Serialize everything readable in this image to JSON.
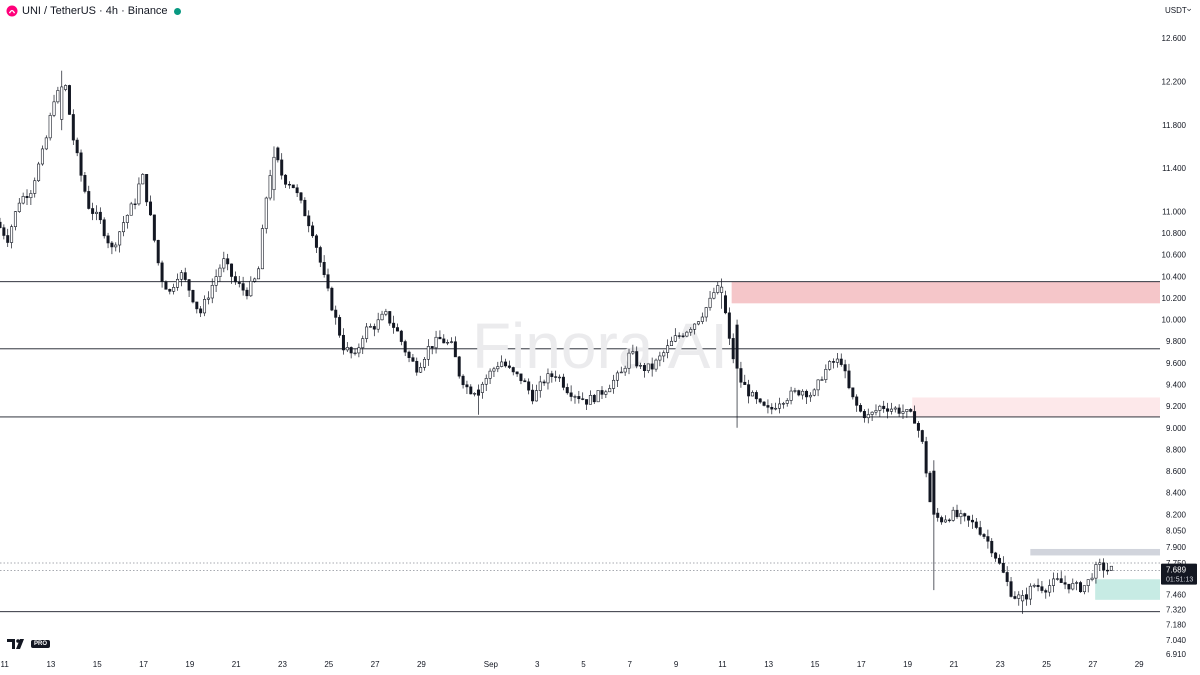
{
  "header": {
    "symbol": "UNI",
    "quote": "TetherUS",
    "interval": "4h",
    "exchange": "Binance",
    "separator": " / ",
    "separator2": " · ",
    "status_color": "#089981"
  },
  "currency_button": {
    "label": "USDT",
    "icon": "chevron-down-icon"
  },
  "watermark": "Finora AI",
  "branding": {
    "logo": "tradingview-logo",
    "badge": "PRO"
  },
  "price_marker": {
    "price_label": "7.689",
    "countdown": "01:51:13",
    "value": 7.689
  },
  "chart_data": {
    "type": "candlestick",
    "title": "",
    "y_axis": {
      "min": 6.9,
      "max": 12.75,
      "position": "right",
      "tick_labels": [
        "12.600",
        "12.200",
        "11.800",
        "11.400",
        "11.000",
        "10.800",
        "10.600",
        "10.400",
        "10.200",
        "10.000",
        "9.800",
        "9.600",
        "9.400",
        "9.200",
        "9.000",
        "8.800",
        "8.600",
        "8.400",
        "8.200",
        "8.050",
        "7.900",
        "7.750",
        "7.600",
        "7.460",
        "7.320",
        "7.180",
        "7.040",
        "6.910"
      ],
      "tick_values": [
        12.6,
        12.2,
        11.8,
        11.4,
        11.0,
        10.8,
        10.6,
        10.4,
        10.2,
        10.0,
        9.8,
        9.6,
        9.4,
        9.2,
        9.0,
        8.8,
        8.6,
        8.4,
        8.2,
        8.05,
        7.9,
        7.75,
        7.6,
        7.46,
        7.32,
        7.18,
        7.04,
        6.91
      ]
    },
    "x_axis": {
      "min": 10.8,
      "max": 60.9,
      "tick_labels": [
        "11",
        "13",
        "15",
        "17",
        "19",
        "21",
        "23",
        "25",
        "27",
        "29",
        "Sep",
        "3",
        "5",
        "7",
        "9",
        "11",
        "13",
        "15",
        "17",
        "19",
        "21",
        "23",
        "25",
        "27",
        "29"
      ],
      "tick_days": [
        11,
        13,
        15,
        17,
        19,
        21,
        23,
        25,
        27,
        29,
        32,
        34,
        36,
        38,
        40,
        42,
        44,
        46,
        48,
        50,
        52,
        54,
        56,
        58,
        60
      ]
    },
    "key_path": [
      [
        10.8,
        10.9
      ],
      [
        11.3,
        10.75
      ],
      [
        11.8,
        11.1
      ],
      [
        12.3,
        11.2
      ],
      [
        12.9,
        11.6
      ],
      [
        13.3,
        12.05
      ],
      [
        13.8,
        12.15
      ],
      [
        14.1,
        11.7
      ],
      [
        14.5,
        11.3
      ],
      [
        14.8,
        11.05
      ],
      [
        15.3,
        10.9
      ],
      [
        15.8,
        10.65
      ],
      [
        16.3,
        10.9
      ],
      [
        16.8,
        11.1
      ],
      [
        17.1,
        11.35
      ],
      [
        17.5,
        10.9
      ],
      [
        17.9,
        10.4
      ],
      [
        18.3,
        10.25
      ],
      [
        18.7,
        10.45
      ],
      [
        19.1,
        10.3
      ],
      [
        19.6,
        10.05
      ],
      [
        20.1,
        10.3
      ],
      [
        20.6,
        10.55
      ],
      [
        21.1,
        10.35
      ],
      [
        21.6,
        10.25
      ],
      [
        22.1,
        10.4
      ],
      [
        22.5,
        11.2
      ],
      [
        22.8,
        11.55
      ],
      [
        23.2,
        11.3
      ],
      [
        23.6,
        11.25
      ],
      [
        24.0,
        11.05
      ],
      [
        24.5,
        10.8
      ],
      [
        25.0,
        10.35
      ],
      [
        25.4,
        10.05
      ],
      [
        25.8,
        9.75
      ],
      [
        26.3,
        9.65
      ],
      [
        26.7,
        9.9
      ],
      [
        27.2,
        9.95
      ],
      [
        27.6,
        10.05
      ],
      [
        28.1,
        9.9
      ],
      [
        28.6,
        9.65
      ],
      [
        29.0,
        9.55
      ],
      [
        29.5,
        9.75
      ],
      [
        30.0,
        9.82
      ],
      [
        30.5,
        9.75
      ],
      [
        30.8,
        9.5
      ],
      [
        31.2,
        9.35
      ],
      [
        31.6,
        9.35
      ],
      [
        32.1,
        9.5
      ],
      [
        32.6,
        9.62
      ],
      [
        33.1,
        9.5
      ],
      [
        33.5,
        9.45
      ],
      [
        34.0,
        9.28
      ],
      [
        34.5,
        9.45
      ],
      [
        35.0,
        9.5
      ],
      [
        35.5,
        9.35
      ],
      [
        35.9,
        9.3
      ],
      [
        36.3,
        9.25
      ],
      [
        36.8,
        9.3
      ],
      [
        37.3,
        9.4
      ],
      [
        37.8,
        9.5
      ],
      [
        38.2,
        9.7
      ],
      [
        38.6,
        9.55
      ],
      [
        39.1,
        9.55
      ],
      [
        39.6,
        9.68
      ],
      [
        40.1,
        9.82
      ],
      [
        40.6,
        9.9
      ],
      [
        41.1,
        10.0
      ],
      [
        41.6,
        10.15
      ],
      [
        41.9,
        10.3
      ],
      [
        42.2,
        10.2
      ],
      [
        42.5,
        9.75
      ],
      [
        42.9,
        9.45
      ],
      [
        43.4,
        9.3
      ],
      [
        43.8,
        9.2
      ],
      [
        44.2,
        9.15
      ],
      [
        44.6,
        9.25
      ],
      [
        45.1,
        9.3
      ],
      [
        45.6,
        9.35
      ],
      [
        46.1,
        9.3
      ],
      [
        46.5,
        9.5
      ],
      [
        46.9,
        9.6
      ],
      [
        47.3,
        9.62
      ],
      [
        47.7,
        9.3
      ],
      [
        48.1,
        9.15
      ],
      [
        48.5,
        9.1
      ],
      [
        49.0,
        9.2
      ],
      [
        49.5,
        9.18
      ],
      [
        50.0,
        9.15
      ],
      [
        50.5,
        9.08
      ],
      [
        50.8,
        8.85
      ],
      [
        51.0,
        8.55
      ],
      [
        51.2,
        8.2
      ],
      [
        51.6,
        8.15
      ],
      [
        52.1,
        8.2
      ],
      [
        52.6,
        8.15
      ],
      [
        53.1,
        8.1
      ],
      [
        53.5,
        8.0
      ],
      [
        53.9,
        7.85
      ],
      [
        54.3,
        7.65
      ],
      [
        54.7,
        7.45
      ],
      [
        55.2,
        7.42
      ],
      [
        55.6,
        7.55
      ],
      [
        56.1,
        7.52
      ],
      [
        56.6,
        7.58
      ],
      [
        57.1,
        7.55
      ],
      [
        57.6,
        7.52
      ],
      [
        57.9,
        7.55
      ],
      [
        58.2,
        7.68
      ],
      [
        58.5,
        7.72
      ],
      [
        58.8,
        7.689
      ]
    ],
    "anchor_candles": [
      {
        "day": 13.4,
        "o": 11.85,
        "h": 12.3,
        "l": 11.75,
        "c": 12.15
      },
      {
        "day": 22.6,
        "o": 11.2,
        "h": 11.6,
        "l": 11.1,
        "c": 11.5
      },
      {
        "day": 31.5,
        "o": 9.35,
        "h": 9.4,
        "l": 9.12,
        "c": 9.3
      },
      {
        "day": 41.9,
        "o": 10.25,
        "h": 10.38,
        "l": 10.1,
        "c": 10.3
      },
      {
        "day": 42.6,
        "o": 9.95,
        "h": 10.0,
        "l": 9.0,
        "c": 9.55
      },
      {
        "day": 51.2,
        "o": 8.6,
        "h": 8.7,
        "l": 7.5,
        "c": 8.2
      },
      {
        "day": 55.0,
        "o": 7.4,
        "h": 7.5,
        "l": 7.28,
        "c": 7.45
      }
    ],
    "horizontal_levels": [
      10.35,
      9.73,
      9.1,
      7.3
    ],
    "dotted_levels": [
      7.75,
      7.68
    ],
    "zones": [
      {
        "name": "supply-zone-upper",
        "from_day": 42.4,
        "to_day": 61.2,
        "low": 10.15,
        "high": 10.35,
        "color": "#f5c6c9"
      },
      {
        "name": "supply-zone-lower",
        "from_day": 50.2,
        "to_day": 61.2,
        "low": 9.1,
        "high": 9.28,
        "color": "#fde8ea"
      },
      {
        "name": "resistance-band",
        "from_day": 55.3,
        "to_day": 61.2,
        "low": 7.82,
        "high": 7.88,
        "color": "#d1d4dc"
      },
      {
        "name": "demand-zone",
        "from_day": 58.1,
        "to_day": 61.2,
        "low": 7.41,
        "high": 7.6,
        "color": "#c7ebe4"
      }
    ]
  }
}
